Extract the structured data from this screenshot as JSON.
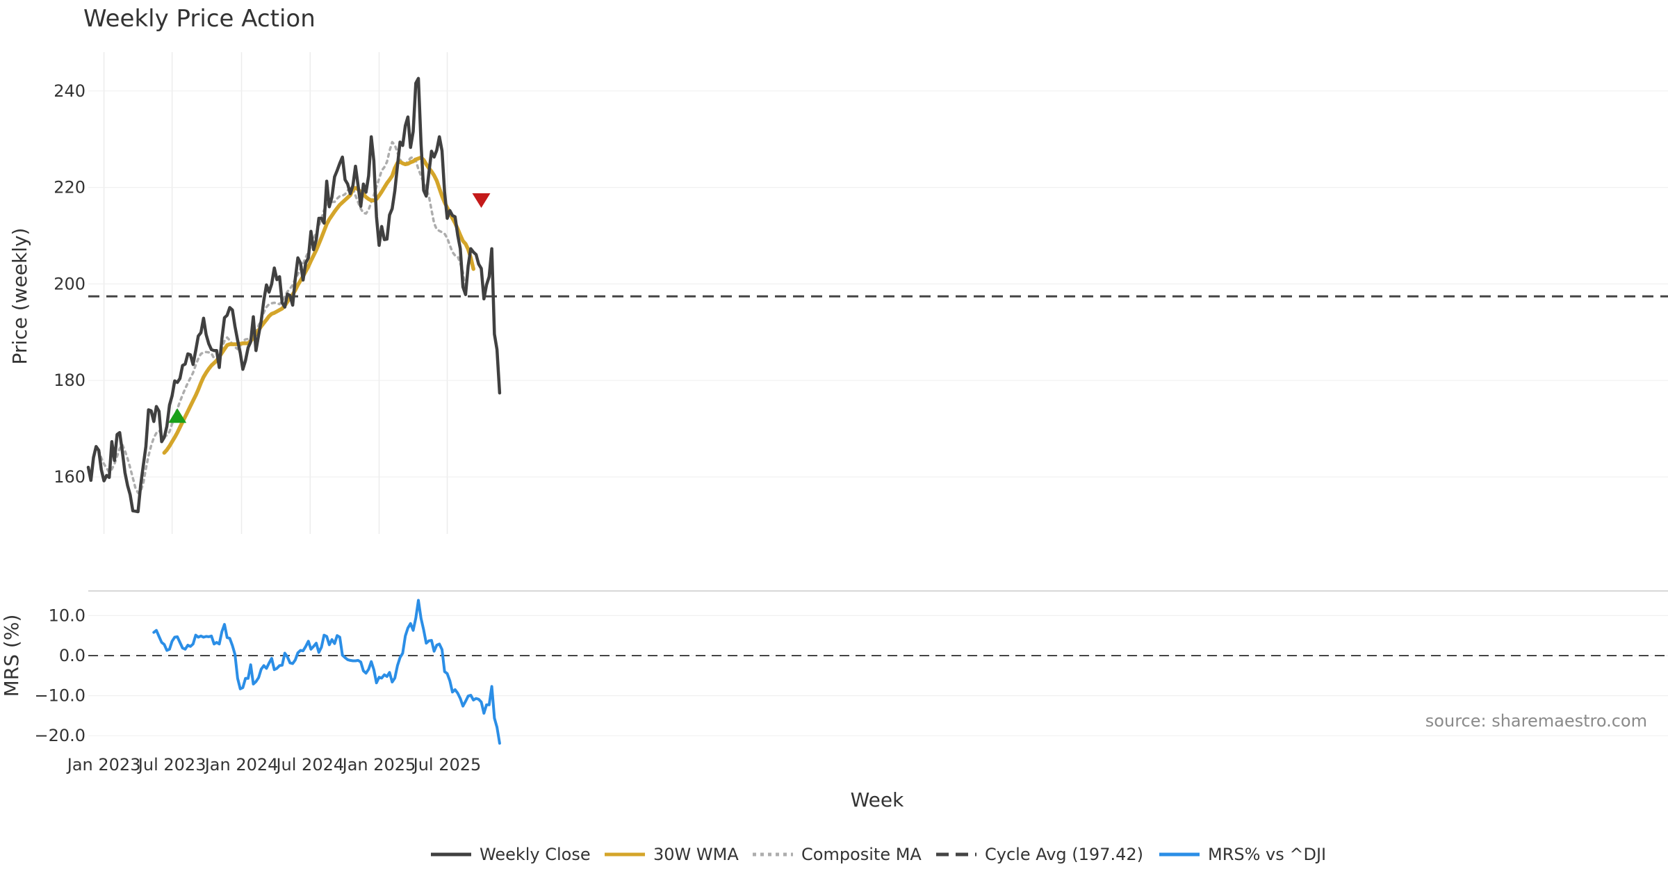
{
  "chart_data": [
    {
      "type": "line",
      "title": "Weekly Price Action",
      "ylabel": "Price (weekly)",
      "ylim": [
        148,
        248
      ],
      "yticks": [
        160,
        180,
        200,
        220,
        240
      ],
      "x_start": "2022-11-21",
      "x_step_weeks": 1,
      "series": [
        {
          "name": "Weekly Close",
          "color": "#404040",
          "style": "solid",
          "values": [
            162.0,
            159.3,
            164.0,
            166.3,
            165.5,
            161.5,
            159.2,
            160.3,
            159.9,
            167.3,
            163.4,
            168.8,
            169.2,
            165.3,
            160.9,
            158.2,
            156.3,
            153.0,
            152.9,
            152.8,
            158.3,
            162.4,
            166.3,
            173.9,
            173.7,
            171.5,
            174.6,
            173.6,
            167.3,
            168.2,
            170.5,
            174.9,
            176.8,
            179.9,
            179.6,
            180.4,
            183.1,
            183.4,
            185.5,
            185.3,
            183.3,
            186.2,
            189.2,
            189.9,
            192.9,
            189.5,
            187.6,
            186.4,
            186.2,
            186.2,
            182.7,
            188.7,
            193.0,
            193.5,
            195.1,
            194.6,
            191.2,
            188.3,
            185.7,
            182.3,
            184.1,
            186.8,
            188.0,
            193.2,
            186.2,
            189.4,
            192.3,
            196.6,
            199.8,
            198.3,
            200.0,
            203.3,
            200.9,
            201.5,
            196.1,
            195.2,
            197.9,
            197.6,
            195.6,
            201.0,
            205.4,
            204.3,
            200.8,
            204.4,
            205.4,
            210.9,
            207.1,
            209.1,
            213.6,
            213.6,
            212.6,
            221.3,
            216.0,
            218.0,
            222.2,
            223.5,
            225.0,
            226.3,
            221.6,
            220.7,
            218.7,
            220.4,
            224.4,
            220.3,
            216.1,
            220.7,
            219.0,
            222.4,
            230.5,
            225.5,
            213.9,
            208.0,
            211.9,
            209.2,
            209.3,
            214.3,
            215.6,
            219.3,
            224.5,
            229.4,
            228.7,
            232.8,
            234.6,
            228.3,
            231.6,
            241.6,
            242.6,
            229.1,
            219.4,
            218.2,
            223.0,
            227.5,
            226.3,
            227.7,
            230.5,
            227.6,
            219.0,
            213.6,
            215.2,
            214.2,
            213.9,
            210.1,
            207.3,
            199.4,
            197.8,
            203.7,
            207.3,
            206.6,
            206.1,
            204.1,
            203.2,
            196.9,
            199.8,
            201.5,
            207.3,
            189.6,
            186.4,
            177.4
          ]
        },
        {
          "name": "30W WMA",
          "color": "#d4a52a",
          "style": "solid",
          "start_index": 29,
          "values": [
            165.0,
            165.6,
            166.4,
            167.3,
            168.2,
            169.2,
            170.3,
            171.4,
            172.5,
            173.6,
            174.7,
            175.8,
            176.9,
            178.1,
            179.5,
            180.7,
            181.6,
            182.4,
            183.1,
            183.6,
            184.1,
            184.9,
            185.7,
            186.5,
            187.3,
            187.5,
            187.5,
            187.5,
            187.5,
            187.6,
            187.7,
            187.7,
            187.7,
            188.2,
            188.8,
            189.6,
            190.4,
            191.2,
            191.9,
            192.6,
            193.3,
            193.8,
            194.0,
            194.3,
            194.6,
            194.9,
            195.5,
            196.3,
            197.2,
            197.8,
            198.7,
            199.8,
            200.7,
            201.6,
            202.6,
            203.6,
            204.8,
            205.9,
            207.0,
            208.3,
            209.6,
            211.0,
            212.4,
            213.4,
            214.2,
            215.0,
            215.7,
            216.4,
            216.9,
            217.4,
            217.9,
            218.4,
            219.6,
            219.9,
            219.6,
            219.0,
            218.6,
            218.0,
            217.6,
            217.3,
            217.3,
            217.6,
            218.3,
            219.1,
            220.0,
            220.9,
            221.6,
            222.4,
            224.0,
            225.1,
            225.3,
            225.0,
            224.8,
            224.9,
            225.2,
            225.4,
            225.8,
            226.0,
            226.2,
            225.7,
            224.8,
            224.0,
            223.3,
            222.5,
            221.4,
            219.8,
            218.2,
            216.9,
            215.8,
            214.7,
            213.6,
            212.6,
            211.4,
            210.1,
            208.9,
            208.3,
            207.2,
            205.4,
            203.1
          ]
        },
        {
          "name": "Composite MA",
          "color": "#adadad",
          "style": "dotted",
          "start_index": 4,
          "values": [
            165.5,
            163.9,
            162.7,
            161.8,
            161.0,
            161.6,
            162.7,
            164.3,
            165.9,
            166.7,
            165.4,
            163.8,
            161.9,
            159.8,
            157.7,
            156.7,
            157.0,
            158.7,
            161.7,
            164.4,
            166.5,
            168.1,
            169.1,
            169.6,
            168.8,
            168.4,
            168.6,
            169.4,
            171.0,
            172.6,
            174.1,
            175.6,
            177.0,
            178.3,
            179.5,
            180.5,
            181.6,
            183.2,
            184.5,
            185.5,
            185.8,
            185.9,
            185.8,
            185.6,
            184.6,
            183.9,
            184.8,
            186.7,
            188.2,
            188.9,
            188.3,
            187.5,
            186.9,
            186.5,
            187.1,
            188.1,
            188.5,
            188.6,
            188.7,
            189.2,
            190.0,
            191.4,
            192.6,
            194.1,
            195.2,
            195.8,
            196.0,
            196.1,
            196.0,
            195.8,
            196.4,
            197.4,
            198.4,
            199.0,
            199.8,
            201.1,
            202.0,
            203.1,
            204.2,
            205.5,
            206.6,
            207.9,
            209.3,
            210.6,
            212.0,
            213.6,
            215.3,
            216.6,
            216.9,
            217.0,
            217.0,
            217.7,
            218.2,
            218.3,
            218.6,
            219.4,
            219.9,
            219.9,
            218.3,
            216.9,
            215.6,
            214.7,
            214.6,
            215.4,
            216.9,
            218.4,
            220.1,
            221.8,
            223.5,
            224.2,
            225.3,
            227.6,
            229.4,
            228.8,
            227.2,
            225.8,
            224.9,
            224.8,
            225.4,
            226.1,
            226.3,
            225.6,
            223.8,
            222.4,
            220.9,
            219.8,
            218.2,
            215.3,
            212.6,
            211.3,
            211.0,
            210.7,
            210.4,
            209.5,
            208.0,
            206.6,
            205.9,
            205.7,
            204.3,
            202.4,
            198.4
          ]
        },
        {
          "name": "Cycle Avg (197.42)",
          "color": "#444444",
          "style": "dashed",
          "constant": 197.42
        }
      ],
      "markers": [
        {
          "type": "buy",
          "shape": "triangle-up",
          "color": "#1aa01a",
          "index": 34,
          "y": 172.5
        },
        {
          "type": "sell",
          "shape": "triangle-down",
          "color": "#c41a1a",
          "index": 150,
          "y": 217.5
        }
      ]
    },
    {
      "type": "line",
      "xlabel": "Week",
      "ylabel": "MRS (%)",
      "ylim": [
        -21.5,
        16.5
      ],
      "yticks": [
        10.0,
        0.0,
        -10.0,
        -20.0
      ],
      "ytick_labels": [
        "10.0",
        "0.0",
        "−10.0",
        "−20.0"
      ],
      "reference_line": 0.0,
      "series": [
        {
          "name": "MRS% vs ^DJI",
          "color": "#2b8ee6",
          "style": "solid",
          "start_index": 25,
          "values": [
            5.8,
            6.3,
            4.8,
            3.3,
            2.8,
            1.3,
            1.6,
            3.6,
            4.6,
            4.7,
            3.3,
            1.9,
            1.6,
            2.6,
            2.3,
            2.9,
            5.1,
            4.6,
            4.9,
            4.6,
            4.8,
            4.7,
            4.9,
            2.9,
            3.3,
            2.9,
            6.0,
            7.8,
            4.5,
            4.3,
            2.5,
            0.3,
            -5.7,
            -8.3,
            -8.0,
            -5.7,
            -5.7,
            -2.3,
            -7.1,
            -6.5,
            -5.5,
            -3.4,
            -2.5,
            -3.2,
            -1.9,
            -0.7,
            -3.5,
            -3.2,
            -2.5,
            -2.4,
            0.6,
            -0.3,
            -1.8,
            -2.0,
            -1.1,
            0.7,
            1.3,
            1.2,
            2.3,
            3.6,
            1.6,
            2.3,
            3.1,
            0.8,
            2.1,
            5.1,
            4.8,
            2.7,
            4.0,
            3.0,
            5.0,
            4.6,
            0.1,
            -0.5,
            -1.0,
            -1.2,
            -1.3,
            -1.3,
            -1.2,
            -1.6,
            -3.8,
            -4.4,
            -3.4,
            -1.5,
            -3.5,
            -6.8,
            -5.4,
            -5.6,
            -4.8,
            -5.2,
            -4.2,
            -6.6,
            -5.6,
            -2.5,
            -0.5,
            0.6,
            4.9,
            6.9,
            8.0,
            6.3,
            9.4,
            13.8,
            9.3,
            6.4,
            3.1,
            3.7,
            3.8,
            1.1,
            2.6,
            2.9,
            1.5,
            -4.0,
            -4.5,
            -6.3,
            -9.1,
            -8.5,
            -9.4,
            -10.7,
            -12.6,
            -11.4,
            -10.1,
            -9.9,
            -11.1,
            -10.7,
            -10.9,
            -11.6,
            -14.4,
            -12.3,
            -12.3,
            -7.7,
            -15.6,
            -17.9,
            -21.9
          ]
        }
      ],
      "annotation": "source: sharemaestro.com"
    }
  ],
  "x_ticks": [
    {
      "label": "Jan 2023",
      "index": 6
    },
    {
      "label": "Jul 2023",
      "index": 32
    },
    {
      "label": "Jan 2024",
      "index": 58.5
    },
    {
      "label": "Jul 2024",
      "index": 84.7
    },
    {
      "label": "Jan 2025",
      "index": 111
    },
    {
      "label": "Jul 2025",
      "index": 137
    }
  ],
  "legend": [
    {
      "label": "Weekly Close",
      "color": "#404040",
      "style": "solid"
    },
    {
      "label": "30W WMA",
      "color": "#d4a52a",
      "style": "solid"
    },
    {
      "label": "Composite MA",
      "color": "#adadad",
      "style": "dotted"
    },
    {
      "label": "Cycle Avg (197.42)",
      "color": "#444444",
      "style": "dashed"
    },
    {
      "label": "MRS% vs ^DJI",
      "color": "#2b8ee6",
      "style": "solid"
    }
  ],
  "legend_position": "bottom-center"
}
